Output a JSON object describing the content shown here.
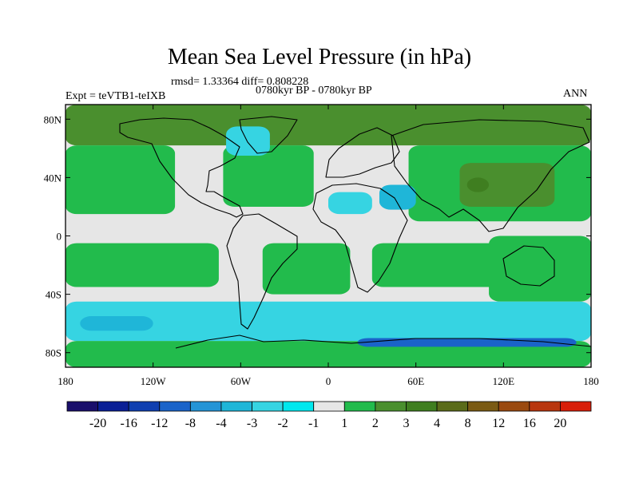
{
  "title": "Mean Sea Level Pressure (in hPa)",
  "stats": "rmsd= 1.33364  diff= 0.808228",
  "period": "0780kyr BP - 0780kyr BP",
  "expt": "Expt = teVTB1-teIXB",
  "season": "ANN",
  "y_axis": {
    "ticks": [
      "80N",
      "40N",
      "0",
      "40S",
      "80S"
    ],
    "values": [
      80,
      40,
      0,
      -40,
      -80
    ],
    "range": [
      -90,
      90
    ]
  },
  "x_axis": {
    "ticks": [
      "180",
      "120W",
      "60W",
      "0",
      "60E",
      "120E",
      "180"
    ],
    "values": [
      -180,
      -120,
      -60,
      0,
      60,
      120,
      180
    ],
    "range": [
      -180,
      180
    ]
  },
  "colorbar": {
    "colors": [
      "#1a0f6b",
      "#0a1f95",
      "#0f3fb0",
      "#1a63c9",
      "#2494d6",
      "#1fb6d8",
      "#36d4e2",
      "#00e8ee",
      "#e6e6e6",
      "#22bb4c",
      "#4a8f2e",
      "#3f7e20",
      "#5a6b1a",
      "#7a5a14",
      "#9a4a10",
      "#b8360e",
      "#d81f0a"
    ],
    "labels": [
      "-20",
      "-16",
      "-12",
      "-8",
      "-4",
      "-3",
      "-2",
      "-1",
      "1",
      "2",
      "3",
      "4",
      "8",
      "12",
      "16",
      "20"
    ]
  },
  "chart_data": {
    "type": "heatmap",
    "variable": "Mean Sea Level Pressure difference",
    "units": "hPa",
    "projection": "cylindrical equidistant",
    "lon_range": [
      -180,
      180
    ],
    "lat_range": [
      -90,
      90
    ],
    "levels": [
      -20,
      -16,
      -12,
      -8,
      -4,
      -3,
      -2,
      -1,
      1,
      2,
      3,
      4,
      8,
      12,
      16,
      20
    ],
    "regions": [
      {
        "name": "arctic",
        "lon": [
          -180,
          180
        ],
        "lat": [
          62,
          90
        ],
        "level": 3
      },
      {
        "name": "north-pacific",
        "lon": [
          -180,
          -105
        ],
        "lat": [
          15,
          62
        ],
        "level": 2
      },
      {
        "name": "north-atlantic",
        "lon": [
          -72,
          -10
        ],
        "lat": [
          20,
          62
        ],
        "level": 2
      },
      {
        "name": "eurasia",
        "lon": [
          55,
          180
        ],
        "lat": [
          10,
          62
        ],
        "level": 2
      },
      {
        "name": "east-asia-high",
        "lon": [
          90,
          155
        ],
        "lat": [
          20,
          50
        ],
        "level": 3
      },
      {
        "name": "tibet-high",
        "lon": [
          95,
          110
        ],
        "lat": [
          30,
          40
        ],
        "level": 4
      },
      {
        "name": "greenland-low",
        "lon": [
          -70,
          -40
        ],
        "lat": [
          55,
          75
        ],
        "level": -2
      },
      {
        "name": "sahara-low",
        "lon": [
          0,
          30
        ],
        "lat": [
          15,
          30
        ],
        "level": -2
      },
      {
        "name": "arabia-low",
        "lon": [
          35,
          60
        ],
        "lat": [
          18,
          35
        ],
        "level": -3
      },
      {
        "name": "tropical-south-pacific",
        "lon": [
          -180,
          -75
        ],
        "lat": [
          -35,
          -5
        ],
        "level": 2
      },
      {
        "name": "south-atlantic",
        "lon": [
          -45,
          15
        ],
        "lat": [
          -40,
          -5
        ],
        "level": 2
      },
      {
        "name": "south-indian",
        "lon": [
          30,
          120
        ],
        "lat": [
          -35,
          -5
        ],
        "level": 2
      },
      {
        "name": "australia",
        "lon": [
          110,
          180
        ],
        "lat": [
          -45,
          0
        ],
        "level": 2
      },
      {
        "name": "southern-ocean",
        "lon": [
          -180,
          180
        ],
        "lat": [
          -72,
          -45
        ],
        "level": -2
      },
      {
        "name": "southern-ocean-core",
        "lon": [
          -170,
          -120
        ],
        "lat": [
          -65,
          -55
        ],
        "level": -3
      },
      {
        "name": "antarctica",
        "lon": [
          -180,
          180
        ],
        "lat": [
          -90,
          -72
        ],
        "level": 2
      },
      {
        "name": "antarctic-coast-low",
        "lon": [
          20,
          170
        ],
        "lat": [
          -76,
          -70
        ],
        "level": -8
      }
    ]
  }
}
